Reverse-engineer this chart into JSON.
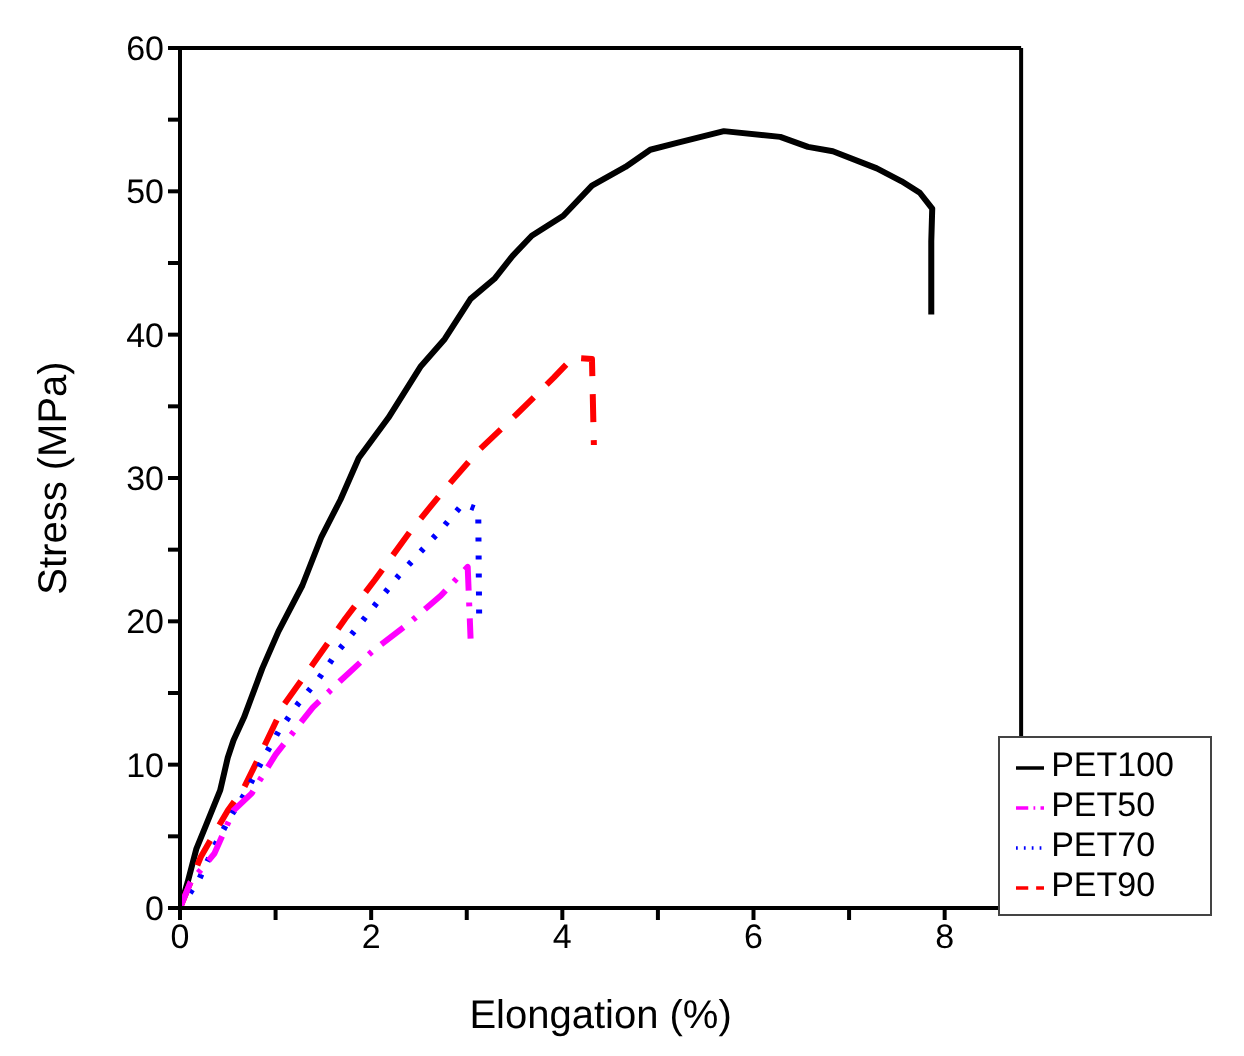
{
  "chart_data": {
    "type": "line",
    "xlabel": "Elongation (%)",
    "ylabel": "Stress (MPa)",
    "xlim": [
      0,
      8.8
    ],
    "xticks": [
      0,
      {
        "value": 1,
        "label": null
      },
      2,
      {
        "value": 3,
        "label": null
      },
      4,
      {
        "value": 5,
        "label": null
      },
      6,
      {
        "value": 7,
        "label": null
      },
      8
    ],
    "ylim": [
      0,
      60
    ],
    "yticks": [
      0,
      {
        "value": 5,
        "label": null
      },
      10,
      {
        "value": 15,
        "label": null
      },
      20,
      {
        "value": 25,
        "label": null
      },
      30,
      {
        "value": 35,
        "label": null
      },
      40,
      {
        "value": 45,
        "label": null
      },
      50,
      {
        "value": 55,
        "label": null
      },
      60
    ],
    "grid": false,
    "legend": "bottom right",
    "marker": "none",
    "series": [
      {
        "name": "PET100",
        "color": "#000000",
        "line_style": "solid",
        "x": [
          0,
          0.08,
          0.17,
          0.28,
          0.42,
          0.5,
          0.56,
          0.67,
          0.86,
          1.03,
          1.28,
          1.48,
          1.68,
          1.87,
          2.18,
          2.52,
          2.77,
          3.04,
          3.29,
          3.48,
          3.68,
          4.01,
          4.31,
          4.66,
          4.92,
          5.21,
          5.69,
          6.28,
          6.57,
          6.83,
          7.29,
          7.55,
          7.74,
          7.87,
          7.86,
          7.86
        ],
        "values": [
          0,
          1.8,
          4.1,
          5.9,
          8.2,
          10.5,
          11.7,
          13.3,
          16.7,
          19.3,
          22.5,
          25.9,
          28.5,
          31.4,
          34.2,
          37.8,
          39.7,
          42.5,
          43.9,
          45.5,
          46.9,
          48.3,
          50.4,
          51.7,
          52.9,
          53.4,
          54.2,
          53.8,
          53.1,
          52.8,
          51.6,
          50.7,
          49.9,
          48.8,
          46.5,
          41.4
        ]
      },
      {
        "name": "PET90",
        "color": "#ff0000",
        "line_style": "dashed",
        "x": [
          0,
          0.22,
          0.5,
          0.67,
          0.81,
          1.09,
          1.39,
          1.73,
          2.04,
          2.4,
          2.73,
          3.12,
          3.53,
          3.91,
          4.11,
          4.31,
          4.33
        ],
        "values": [
          0,
          3.6,
          6.8,
          8.4,
          10.3,
          14.2,
          17,
          20.2,
          22.9,
          26.2,
          28.9,
          31.9,
          34.5,
          37,
          38.4,
          38.3,
          32.3
        ]
      },
      {
        "name": "PET70",
        "color": "#0000ff",
        "line_style": "dotted",
        "x": [
          0,
          0.2,
          0.36,
          0.53,
          0.7,
          0.86,
          1.03,
          1.23,
          1.45,
          1.65,
          1.87,
          2.06,
          2.29,
          2.51,
          2.73,
          2.96,
          3.12,
          3.13
        ],
        "values": [
          0,
          2,
          4.3,
          6.4,
          8.2,
          10.3,
          12.3,
          14.2,
          16,
          17.9,
          19.7,
          21.3,
          23.2,
          24.8,
          26.4,
          28.2,
          27.8,
          20.2
        ]
      },
      {
        "name": "PET50",
        "color": "#ff00ff",
        "line_style": "dashdot",
        "x": [
          0,
          0.11,
          0.36,
          0.56,
          0.75,
          1,
          1.39,
          1.67,
          2.01,
          2.4,
          2.73,
          3.01,
          3.04
        ],
        "values": [
          0,
          1.8,
          3.8,
          6.8,
          8,
          10.7,
          14,
          15.8,
          17.9,
          19.9,
          21.8,
          23.8,
          18.8
        ]
      }
    ]
  }
}
